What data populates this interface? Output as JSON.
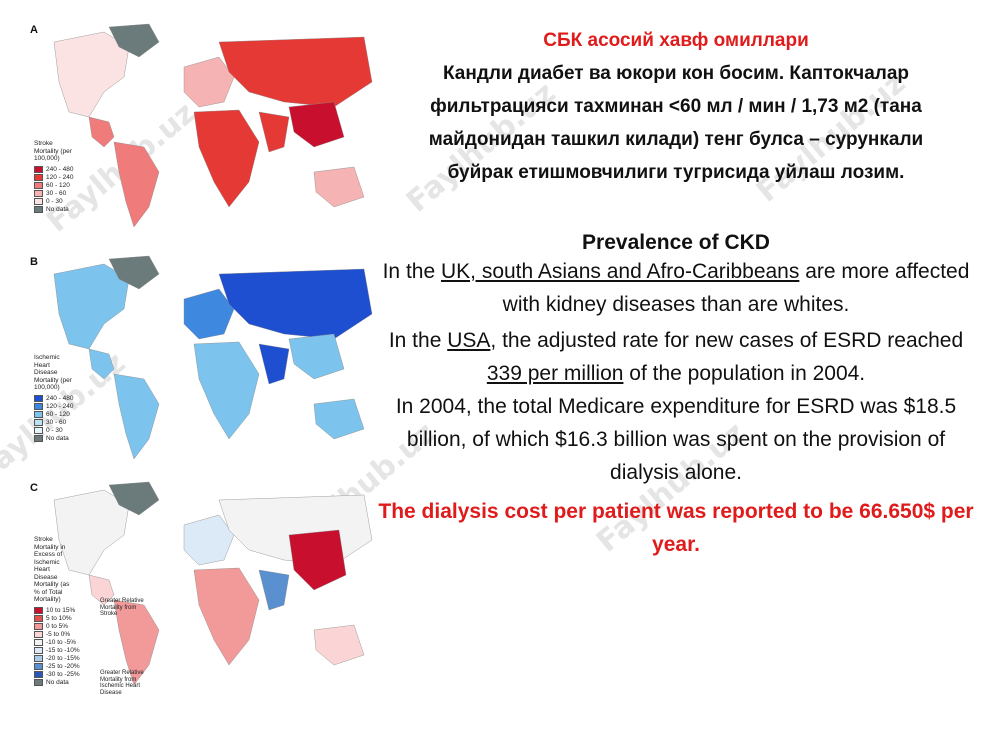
{
  "maps": {
    "panels": [
      {
        "letter": "A",
        "legend_title": "Stroke Mortality (per 100,000)",
        "legend": [
          "240 - 480",
          "120 - 240",
          "60 - 120",
          "30 - 60",
          "0 - 30",
          "No data"
        ],
        "colors": [
          "#c8102e",
          "#e53935",
          "#ef7b7b",
          "#f6b3b3",
          "#fbe3e3",
          "#6b7b7b"
        ]
      },
      {
        "letter": "B",
        "legend_title": "Ischemic Heart Disease Mortality (per 100,000)",
        "legend": [
          "240 - 480",
          "120 - 240",
          "60 - 120",
          "30 - 60",
          "0 - 30",
          "No data"
        ],
        "colors": [
          "#1f4fd1",
          "#3f88e0",
          "#7cc4ee",
          "#b9e3f5",
          "#e3f5fb",
          "#6b7b7b"
        ]
      },
      {
        "letter": "C",
        "legend_title": "Stroke Mortality in Excess of Ischemic Heart Disease Mortality (as % of Total Mortality)",
        "legend": [
          "10 to 15%",
          "5 to 10%",
          "0 to 5%",
          "-5 to 0%",
          "-10 to -5%",
          "-15 to -10%",
          "-20 to -15%",
          "-25 to -20%",
          "-30 to -25%",
          "No data"
        ],
        "colors": [
          "#c8102e",
          "#e35050",
          "#f29a9a",
          "#fbd5d5",
          "#f3f3f3",
          "#dbeaf6",
          "#a7cbe8",
          "#5a8fd0",
          "#2b55b8",
          "#6b7b7b"
        ],
        "note_top": "Greater Relative Mortality from Stroke",
        "note_bottom": "Greater Relative Mortality from Ischemic Heart Disease"
      }
    ]
  },
  "slide": {
    "heading_uz": "СБК асосий хавф омиллари",
    "para_uz": "Кандли диабет ва юкори кон босим. Каптокчалар фильтрацияси тахминан <60 мл / мин / 1,73 м2 (тана майдонидан ташкил килади) тенг булса – сурункали буйрак етишмовчилиги тугрисида уйлаш лозим.",
    "heading_en": "Prevalence of CKD",
    "p1_pre": "In the ",
    "p1_u": "UK, south Asians and Afro-Caribbeans",
    "p1_post": " are more affected with kidney diseases than are whites.",
    "p2_pre": "In the ",
    "p2_u": "USA",
    "p2_mid": ", the adjusted rate for new cases of ESRD reached ",
    "p2_u2": "339 per million",
    "p2_post": " of the population in 2004.",
    "p3": "In 2004, the total Medicare expenditure for ESRD was $18.5 billion, of which $16.3 billion was spent on the provision of dialysis alone.",
    "p4": "The dialysis cost per patient was reported to be 66.650$ per year."
  },
  "watermark": "Faylhub.uz"
}
